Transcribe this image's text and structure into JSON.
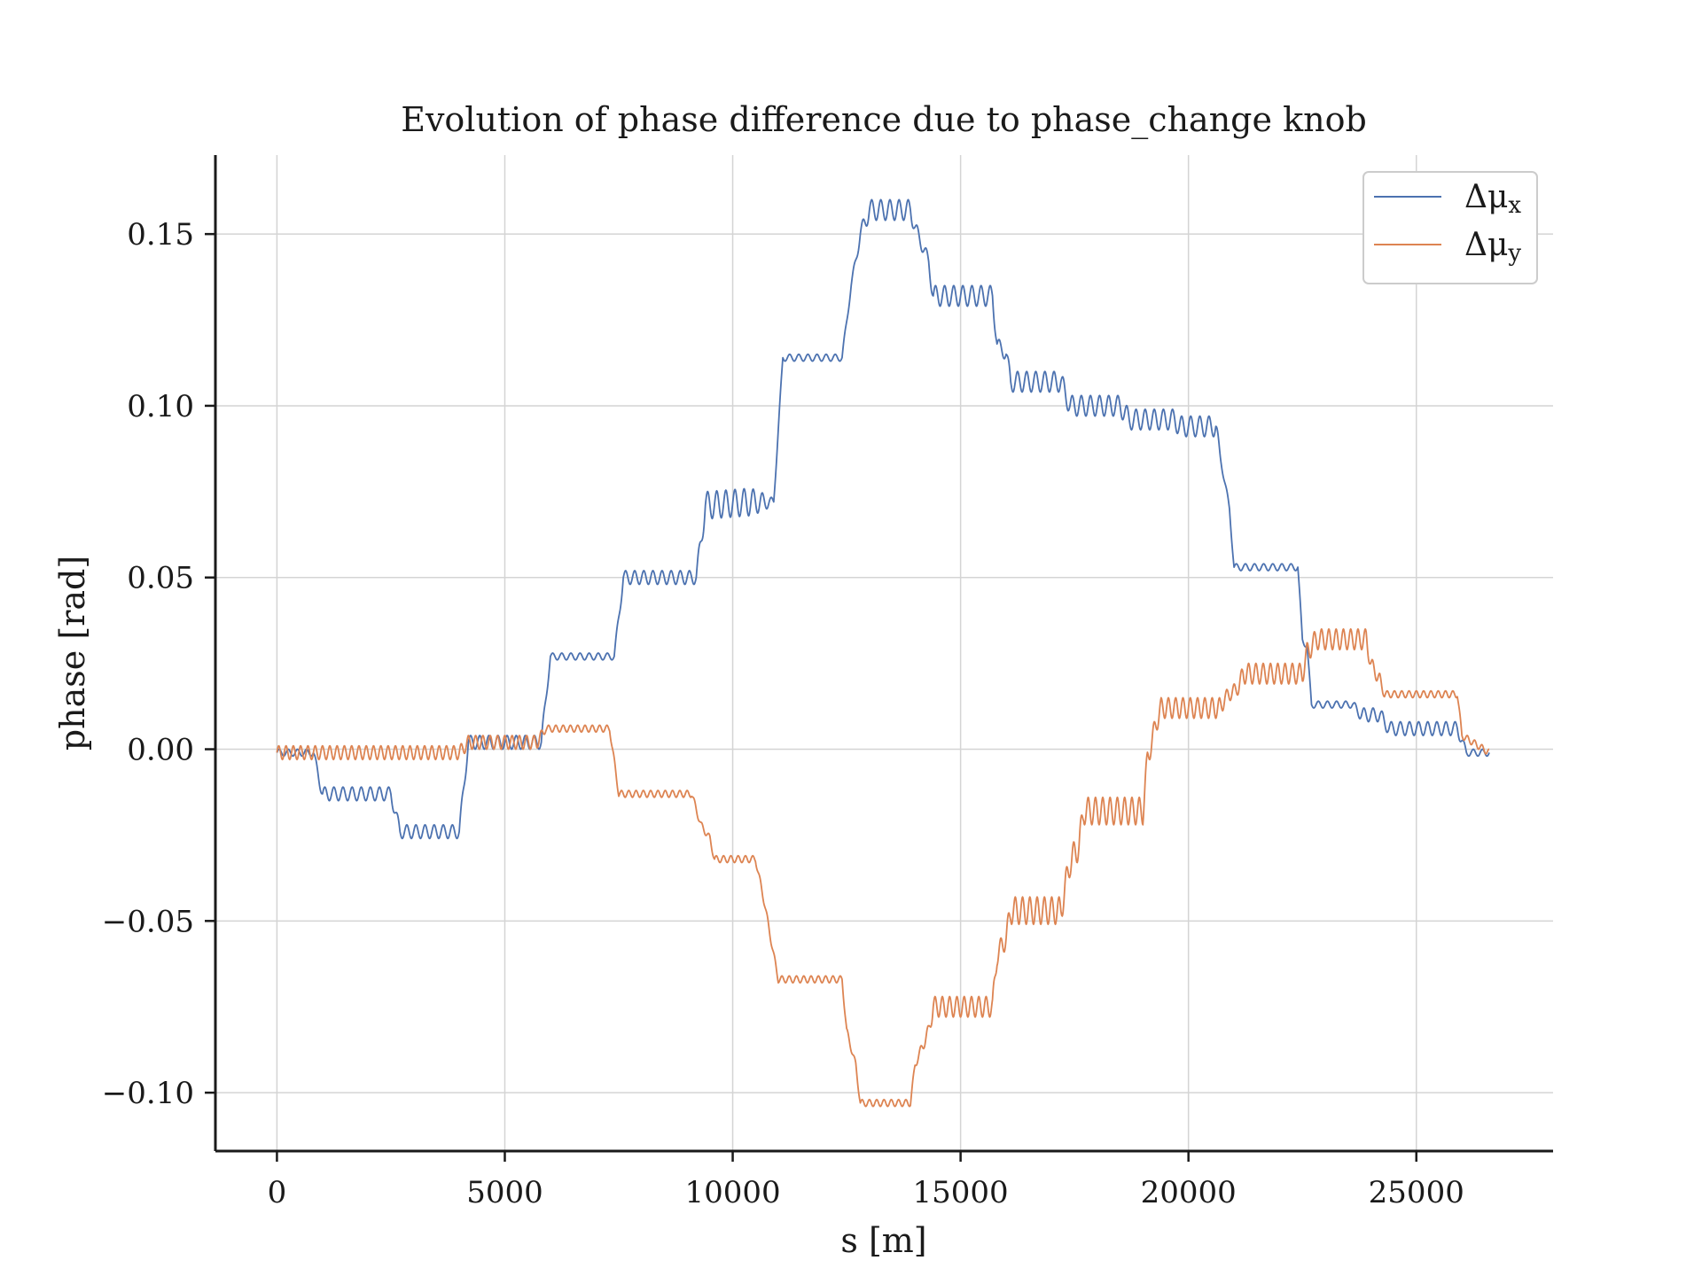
{
  "chart_data": {
    "type": "line",
    "title": "Evolution of phase difference due to phase_change knob",
    "xlabel": "s [m]",
    "ylabel": "phase [rad]",
    "xlim": [
      -1350,
      28000
    ],
    "ylim": [
      -0.117,
      0.173
    ],
    "xticks": [
      0,
      5000,
      10000,
      15000,
      20000,
      25000
    ],
    "xtick_labels": [
      "0",
      "5000",
      "10000",
      "15000",
      "20000",
      "25000"
    ],
    "yticks": [
      -0.1,
      -0.05,
      0.0,
      0.05,
      0.1,
      0.15
    ],
    "ytick_labels": [
      "−0.10",
      "−0.05",
      "0.00",
      "0.05",
      "0.10",
      "0.15"
    ],
    "grid": true,
    "legend_position": "top-right",
    "series": [
      {
        "name": "Δμx",
        "legend_main": "Δμ",
        "legend_sub": "x",
        "color": "#4c72b0",
        "ripple_period": 200,
        "x": [
          0,
          800,
          1000,
          2500,
          2700,
          4000,
          4200,
          5800,
          6000,
          7400,
          7600,
          9200,
          9400,
          10400,
          10600,
          10900,
          11100,
          12400,
          12600,
          12800,
          13000,
          13900,
          14000,
          14300,
          14400,
          15700,
          15800,
          16000,
          16100,
          17200,
          17400,
          18500,
          18700,
          19700,
          19800,
          20600,
          20700,
          20900,
          21000,
          22400,
          22500,
          22600,
          22700,
          23600,
          23800,
          24200,
          24400,
          25900,
          26100,
          26600
        ],
        "y": [
          -0.001,
          -0.001,
          -0.013,
          -0.013,
          -0.024,
          -0.024,
          0.002,
          0.002,
          0.027,
          0.027,
          0.05,
          0.05,
          0.071,
          0.072,
          0.072,
          0.072,
          0.114,
          0.114,
          0.135,
          0.15,
          0.157,
          0.157,
          0.152,
          0.142,
          0.132,
          0.132,
          0.118,
          0.115,
          0.107,
          0.107,
          0.1,
          0.1,
          0.096,
          0.096,
          0.094,
          0.094,
          0.085,
          0.07,
          0.053,
          0.053,
          0.032,
          0.03,
          0.013,
          0.013,
          0.01,
          0.01,
          0.006,
          0.006,
          -0.001,
          -0.001
        ],
        "ripple": [
          0.001,
          0.001,
          0.002,
          0.002,
          0.002,
          0.002,
          0.002,
          0.002,
          0.001,
          0.001,
          0.002,
          0.002,
          0.004,
          0.004,
          0.003,
          0.001,
          0.001,
          0.001,
          0.001,
          0.002,
          0.003,
          0.003,
          0.002,
          0.002,
          0.003,
          0.003,
          0.002,
          0.002,
          0.003,
          0.003,
          0.003,
          0.003,
          0.003,
          0.003,
          0.003,
          0.003,
          0.001,
          0.001,
          0.001,
          0.001,
          0.001,
          0.001,
          0.001,
          0.001,
          0.002,
          0.002,
          0.002,
          0.002,
          0.001,
          0.001
        ]
      },
      {
        "name": "Δμy",
        "legend_main": "Δμ",
        "legend_sub": "y",
        "color": "#dd8452",
        "ripple_period": 160,
        "x": [
          0,
          4000,
          4200,
          5700,
          5900,
          7300,
          7500,
          9100,
          9300,
          9500,
          9600,
          10500,
          10700,
          10900,
          11000,
          12400,
          12500,
          12700,
          12800,
          13900,
          14000,
          14300,
          14400,
          15700,
          15800,
          16000,
          16100,
          17200,
          17400,
          17600,
          17700,
          19000,
          19100,
          19300,
          19400,
          20700,
          20800,
          21100,
          21200,
          22500,
          22600,
          22700,
          22800,
          23900,
          24000,
          24200,
          24300,
          25900,
          26000,
          26600
        ],
        "y": [
          -0.001,
          -0.001,
          0.002,
          0.002,
          0.006,
          0.006,
          -0.013,
          -0.013,
          -0.022,
          -0.026,
          -0.032,
          -0.032,
          -0.045,
          -0.06,
          -0.067,
          -0.067,
          -0.082,
          -0.092,
          -0.103,
          -0.103,
          -0.092,
          -0.082,
          -0.075,
          -0.075,
          -0.06,
          -0.055,
          -0.047,
          -0.047,
          -0.033,
          -0.028,
          -0.018,
          -0.018,
          -0.003,
          0.008,
          0.012,
          0.012,
          0.015,
          0.018,
          0.022,
          0.022,
          0.028,
          0.03,
          0.032,
          0.032,
          0.025,
          0.02,
          0.016,
          0.016,
          0.004,
          -0.001
        ],
        "ripple": [
          0.002,
          0.002,
          0.002,
          0.002,
          0.001,
          0.001,
          0.001,
          0.001,
          0.001,
          0.001,
          0.001,
          0.001,
          0.001,
          0.001,
          0.001,
          0.001,
          0.001,
          0.001,
          0.001,
          0.001,
          0.001,
          0.002,
          0.003,
          0.003,
          0.003,
          0.003,
          0.004,
          0.004,
          0.004,
          0.004,
          0.004,
          0.004,
          0.003,
          0.003,
          0.003,
          0.003,
          0.002,
          0.002,
          0.003,
          0.003,
          0.003,
          0.003,
          0.003,
          0.003,
          0.002,
          0.002,
          0.001,
          0.001,
          0.001,
          0.001
        ]
      }
    ]
  }
}
